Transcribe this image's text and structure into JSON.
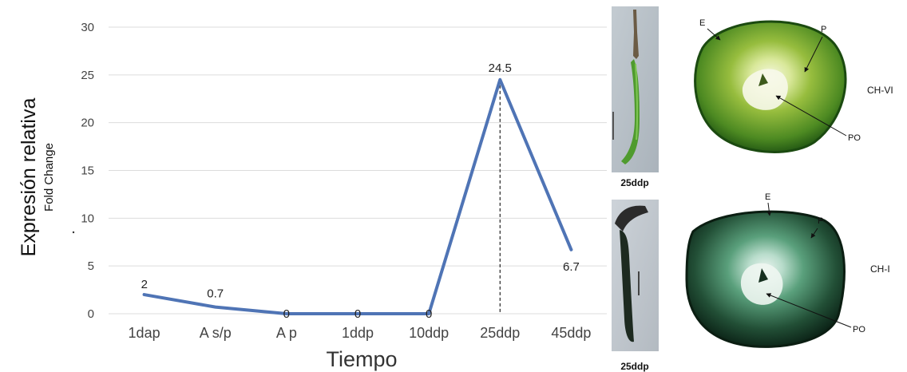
{
  "chart_data": {
    "type": "line",
    "categories": [
      "1dap",
      "A s/p",
      "A p",
      "1ddp",
      "10ddp",
      "25ddp",
      "45ddp"
    ],
    "values": [
      2,
      0.7,
      0,
      0,
      0,
      24.5,
      6.7
    ],
    "data_labels": [
      "2",
      "0.7",
      "0",
      "0",
      "0",
      "24.5",
      "6.7"
    ],
    "ylim": [
      0,
      30
    ],
    "yticks": [
      0,
      5,
      10,
      15,
      20,
      25,
      30
    ],
    "ylabel": "Expresión relativa",
    "ylabel_sub": "Fold Change",
    "xlabel": "Tiempo",
    "grid": true,
    "line_color": "#4f74b5",
    "peak_marker": "dashed vertical line at 25ddp"
  },
  "photos": {
    "top_caption": "25ddp",
    "bottom_caption": "25ddp",
    "top_section": {
      "name": "CH-VI",
      "labels": {
        "e": "E",
        "p": "P",
        "po": "PO"
      }
    },
    "bottom_section": {
      "name": "CH-I",
      "labels": {
        "e": "E",
        "p": "P",
        "po": "PO"
      }
    }
  }
}
